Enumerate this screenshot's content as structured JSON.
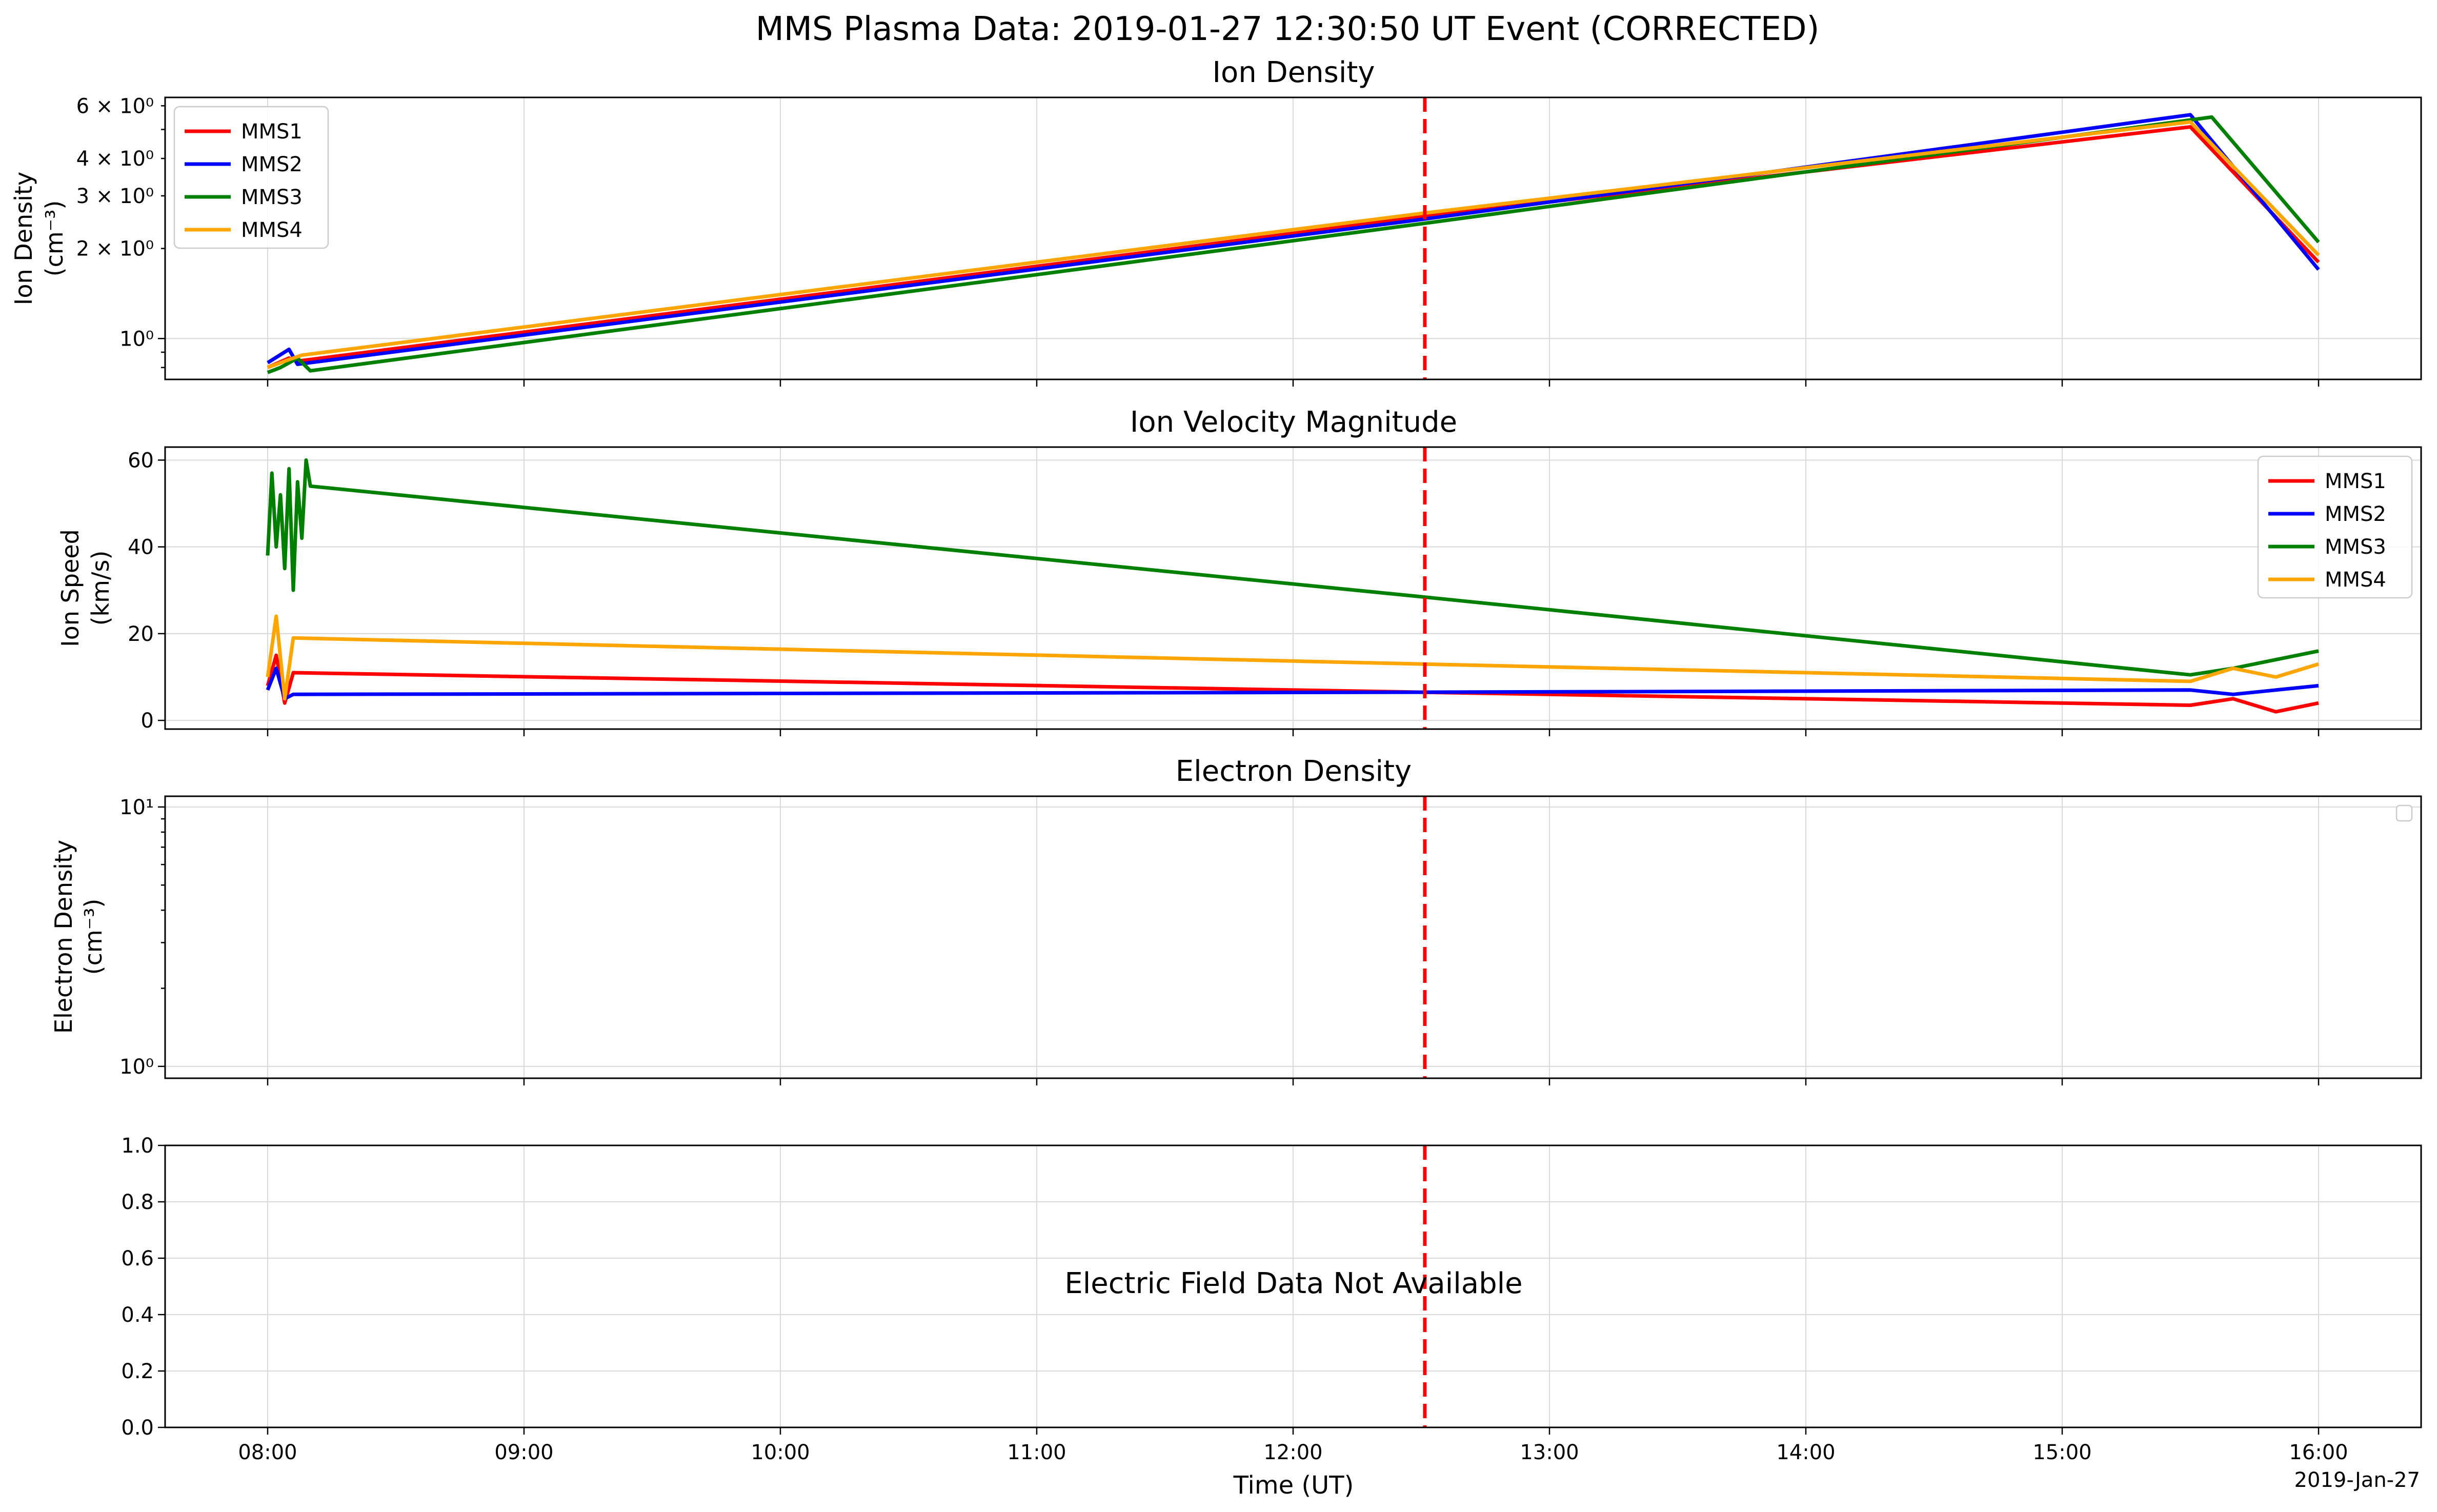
{
  "figure": {
    "title": "MMS Plasma Data: 2019-01-27 12:30:50 UT Event (CORRECTED)",
    "xlabel": "Time (UT)",
    "date_label": "2019-Jan-27",
    "event_time": "12:30:50",
    "event_line_color": "#ff0000",
    "x_ticks": [
      "08:00",
      "09:00",
      "10:00",
      "11:00",
      "12:00",
      "13:00",
      "14:00",
      "15:00",
      "16:00"
    ],
    "series_colors": {
      "MMS1": "#ff0000",
      "MMS2": "#0000ff",
      "MMS3": "#008000",
      "MMS4": "#ffa500"
    }
  },
  "chart_data": [
    {
      "type": "line",
      "title": "Ion Density",
      "ylabel_line1": "Ion Density",
      "ylabel_line2": "(cm⁻³)",
      "yscale": "log",
      "ylim": [
        0.73,
        6.4
      ],
      "xlim": [
        "07:36",
        "16:24"
      ],
      "grid": true,
      "legend": "top-left",
      "y_ticks_major": [
        {
          "value": 1,
          "label": "10⁰"
        }
      ],
      "y_ticks_labeled_minor": [
        {
          "value": 2,
          "label": "2 × 10⁰"
        },
        {
          "value": 3,
          "label": "3 × 10⁰"
        },
        {
          "value": 4,
          "label": "4 × 10⁰"
        },
        {
          "value": 6,
          "label": "6 × 10⁰"
        }
      ],
      "series": [
        {
          "name": "MMS1",
          "x": [
            "08:00",
            "08:05",
            "08:07",
            "12:30",
            "15:30",
            "16:00"
          ],
          "y": [
            0.8,
            0.86,
            0.84,
            2.55,
            5.1,
            1.8
          ]
        },
        {
          "name": "MMS2",
          "x": [
            "08:00",
            "08:05",
            "08:07",
            "12:30",
            "15:30",
            "16:00"
          ],
          "y": [
            0.83,
            0.92,
            0.82,
            2.5,
            5.6,
            1.7
          ]
        },
        {
          "name": "MMS3",
          "x": [
            "08:00",
            "08:03",
            "08:07",
            "08:10",
            "12:30",
            "15:35",
            "16:00"
          ],
          "y": [
            0.77,
            0.8,
            0.86,
            0.78,
            2.42,
            5.5,
            2.1
          ]
        },
        {
          "name": "MMS4",
          "x": [
            "08:00",
            "08:05",
            "08:08",
            "12:30",
            "15:30",
            "16:00"
          ],
          "y": [
            0.8,
            0.85,
            0.88,
            2.62,
            5.3,
            1.9
          ]
        }
      ]
    },
    {
      "type": "line",
      "title": "Ion Velocity Magnitude",
      "ylabel_line1": "Ion Speed",
      "ylabel_line2": "(km/s)",
      "yscale": "linear",
      "ylim": [
        -2,
        63
      ],
      "xlim": [
        "07:36",
        "16:24"
      ],
      "grid": true,
      "legend": "top-right",
      "y_ticks": [
        0,
        20,
        40,
        60
      ],
      "series": [
        {
          "name": "MMS1",
          "x": [
            "08:00",
            "08:02",
            "08:04",
            "08:06",
            "12:30",
            "15:30",
            "15:40",
            "15:50",
            "16:00"
          ],
          "y": [
            8,
            15,
            4,
            11,
            6.5,
            3.5,
            5,
            2,
            4
          ]
        },
        {
          "name": "MMS2",
          "x": [
            "08:00",
            "08:02",
            "08:04",
            "08:06",
            "12:30",
            "15:30",
            "15:40",
            "15:50",
            "16:00"
          ],
          "y": [
            7,
            12,
            5,
            6,
            6.5,
            7,
            6,
            7,
            8
          ]
        },
        {
          "name": "MMS3",
          "x": [
            "08:00",
            "08:01",
            "08:02",
            "08:03",
            "08:04",
            "08:05",
            "08:06",
            "08:07",
            "08:08",
            "08:09",
            "08:10",
            "12:30",
            "15:30",
            "15:40",
            "15:50",
            "16:00"
          ],
          "y": [
            38,
            57,
            40,
            52,
            35,
            58,
            30,
            55,
            42,
            60,
            54,
            28.5,
            10.5,
            12,
            14,
            16
          ]
        },
        {
          "name": "MMS4",
          "x": [
            "08:00",
            "08:02",
            "08:04",
            "08:06",
            "12:30",
            "15:30",
            "15:40",
            "15:50",
            "16:00"
          ],
          "y": [
            10,
            24,
            5,
            19,
            13,
            9,
            12,
            10,
            13
          ]
        }
      ]
    },
    {
      "type": "line",
      "title": "Electron Density",
      "ylabel_line1": "Electron Density",
      "ylabel_line2": "(cm⁻³)",
      "yscale": "log",
      "ylim": [
        0.9,
        11
      ],
      "xlim": [
        "07:36",
        "16:24"
      ],
      "grid": true,
      "legend": "top-right (empty)",
      "y_ticks": [
        {
          "value": 1,
          "label": "10⁰"
        },
        {
          "value": 10,
          "label": "10¹"
        }
      ],
      "series": []
    },
    {
      "type": "line",
      "title": "",
      "yscale": "linear",
      "ylim": [
        0,
        1
      ],
      "xlim": [
        "07:36",
        "16:24"
      ],
      "grid": true,
      "y_ticks": [
        "0.0",
        "0.2",
        "0.4",
        "0.6",
        "0.8",
        "1.0"
      ],
      "message": "Electric Field Data Not Available",
      "series": []
    }
  ]
}
